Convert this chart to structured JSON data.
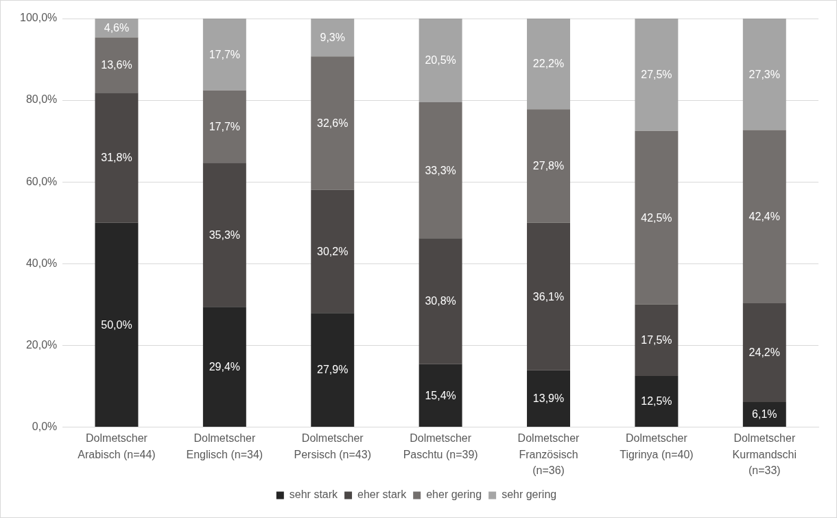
{
  "chart_data": {
    "type": "bar",
    "stacked": true,
    "categories": [
      "Dolmetscher Arabisch (n=44)",
      "Dolmetscher Englisch (n=34)",
      "Dolmetscher Persisch (n=43)",
      "Dolmetscher Paschtu (n=39)",
      "Dolmetscher Französisch (n=36)",
      "Dolmetscher Tigrinya (n=40)",
      "Dolmetscher Kurmandschi (n=33)"
    ],
    "series": [
      {
        "name": "sehr stark",
        "color": "#262626",
        "values": [
          50.0,
          29.4,
          27.9,
          15.4,
          13.9,
          12.5,
          6.1
        ],
        "value_labels": [
          "50,0%",
          "29,4%",
          "27,9%",
          "15,4%",
          "13,9%",
          "12,5%",
          "6,1%"
        ]
      },
      {
        "name": "eher stark",
        "color": "#4b4746",
        "values": [
          31.8,
          35.3,
          30.2,
          30.8,
          36.1,
          17.5,
          24.2
        ],
        "value_labels": [
          "31,8%",
          "35,3%",
          "30,2%",
          "30,8%",
          "36,1%",
          "17,5%",
          "24,2%"
        ]
      },
      {
        "name": "eher gering",
        "color": "#736f6d",
        "values": [
          13.6,
          17.7,
          32.6,
          33.3,
          27.8,
          42.5,
          42.4
        ],
        "value_labels": [
          "13,6%",
          "17,7%",
          "32,6%",
          "33,3%",
          "27,8%",
          "42,5%",
          "42,4%"
        ]
      },
      {
        "name": "sehr gering",
        "color": "#a5a5a5",
        "values": [
          4.6,
          17.7,
          9.3,
          20.5,
          22.2,
          27.5,
          27.3
        ],
        "value_labels": [
          "4,6%",
          "17,7%",
          "9,3%",
          "20,5%",
          "22,2%",
          "27,5%",
          "27,3%"
        ]
      }
    ],
    "ylim": [
      0,
      100
    ],
    "yticks": [
      {
        "value": 0,
        "label": "0,0%"
      },
      {
        "value": 20,
        "label": "20,0%"
      },
      {
        "value": 40,
        "label": "40,0%"
      },
      {
        "value": 60,
        "label": "60,0%"
      },
      {
        "value": 80,
        "label": "80,0%"
      },
      {
        "value": 100,
        "label": "100,0%"
      }
    ],
    "grid": "y",
    "legend": "bottom"
  }
}
